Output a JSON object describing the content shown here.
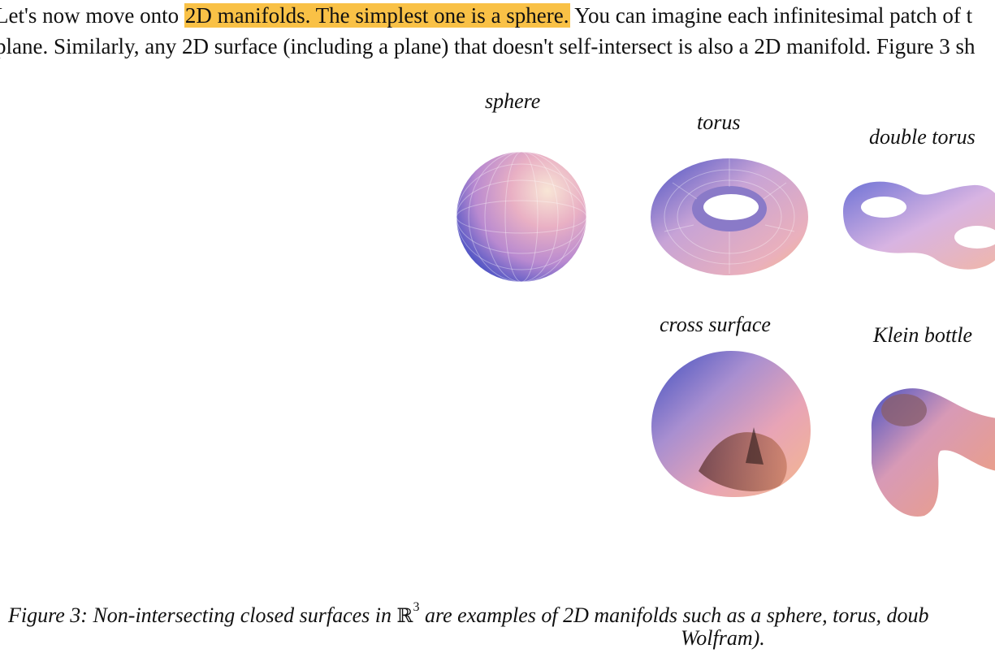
{
  "paragraph": {
    "line1_pre": "Let's now move onto ",
    "line1_highlight": "2D manifolds. The simplest one is a sphere.",
    "line1_post": " You can imagine each infinitesimal patch of t",
    "line2": "plane. Similarly, any 2D surface (including a plane) that doesn't self-intersect is also a 2D manifold. Figure 3 sh"
  },
  "figure": {
    "labels": {
      "sphere": "sphere",
      "torus": "torus",
      "double_torus": "double torus",
      "cross_surface": "cross surface",
      "klein_bottle": "Klein bottle"
    },
    "colors": {
      "blue": "#4a52c4",
      "pink": "#e8a8c0",
      "peach": "#f4b88c",
      "highlight": "#f9c146"
    }
  },
  "caption": {
    "part1": "Figure 3: Non-intersecting closed surfaces in ",
    "symbol": "ℝ",
    "exponent": "3",
    "part2": " are examples of 2D manifolds such as a sphere, torus, doub",
    "line2": "Wolfram)."
  }
}
